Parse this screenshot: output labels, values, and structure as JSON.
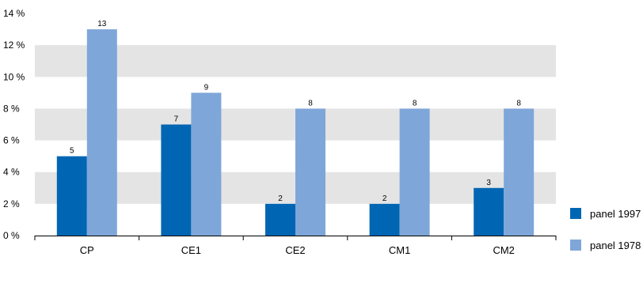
{
  "chart_data": {
    "type": "bar",
    "title": "",
    "xlabel": "",
    "ylabel": "",
    "categories": [
      "CP",
      "CE1",
      "CE2",
      "CM1",
      "CM2"
    ],
    "series": [
      {
        "name": "panel 1997",
        "values": [
          5,
          7,
          2,
          2,
          3
        ],
        "color": "#0066b3"
      },
      {
        "name": "panel 1978",
        "values": [
          13,
          9,
          8,
          8,
          8
        ],
        "color": "#7fa6d9"
      }
    ],
    "ylim": [
      0,
      14
    ],
    "yticks": [
      0,
      2,
      4,
      6,
      8,
      10,
      12,
      14
    ],
    "ytick_labels": [
      "0 %",
      "2 %",
      "4 %",
      "6 %",
      "8 %",
      "10 %",
      "12 %",
      "14 %"
    ],
    "grid": "alternating shaded bands",
    "band_color": "#e4e4e4",
    "axis_color": "#000000",
    "legend_position": "bottom-right",
    "data_labels": true
  }
}
